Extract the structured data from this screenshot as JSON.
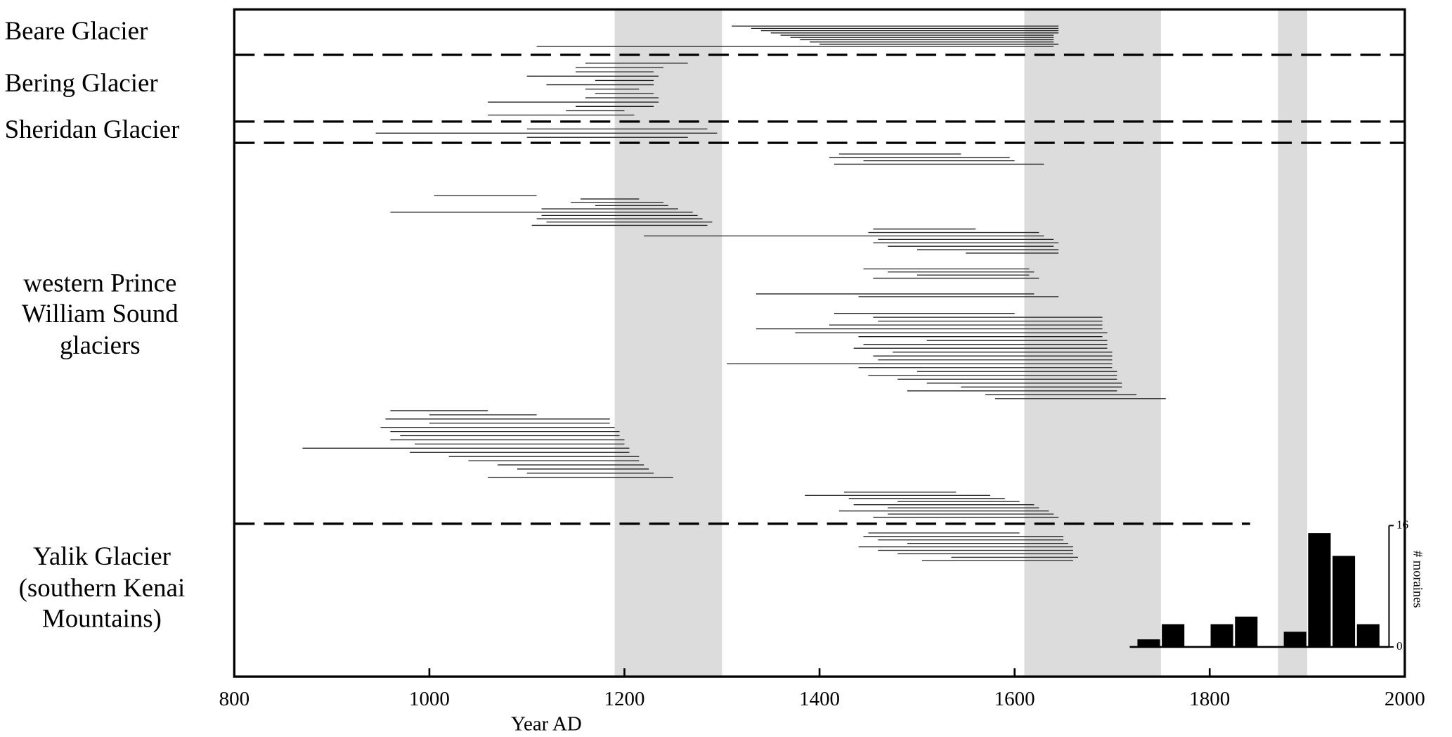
{
  "chart_data": [
    {
      "type": "range",
      "xlabel": "Year AD",
      "xlim": [
        800,
        2000
      ],
      "xticks": [
        800,
        1000,
        1200,
        1400,
        1600,
        1800,
        2000
      ],
      "shaded_periods": [
        [
          1190,
          1300
        ],
        [
          1610,
          1750
        ],
        [
          1870,
          1900
        ]
      ],
      "shade_color": "#dcdcdc",
      "color": "#222222",
      "groups": [
        {
          "name": [
            "Beare Glacier"
          ],
          "clusters": [
            [
              [
                1310,
                1645
              ],
              [
                1330,
                1645
              ],
              [
                1340,
                1645
              ],
              [
                1350,
                1645
              ],
              [
                1360,
                1640
              ],
              [
                1370,
                1640
              ],
              [
                1380,
                1640
              ],
              [
                1390,
                1640
              ],
              [
                1400,
                1645
              ],
              [
                1110,
                1640
              ]
            ]
          ]
        },
        {
          "name": [
            "Bering Glacier"
          ],
          "clusters": [
            [
              [
                1160,
                1265
              ],
              [
                1150,
                1240
              ],
              [
                1150,
                1230
              ],
              [
                1100,
                1235
              ],
              [
                1170,
                1230
              ],
              [
                1120,
                1230
              ],
              [
                1160,
                1215
              ],
              [
                1170,
                1230
              ],
              [
                1160,
                1235
              ],
              [
                1060,
                1235
              ],
              [
                1150,
                1230
              ],
              [
                1140,
                1200
              ],
              [
                1060,
                1210
              ]
            ]
          ]
        },
        {
          "name": [
            "Sheridan Glacier"
          ],
          "clusters": [
            [
              [
                1100,
                1285
              ],
              [
                945,
                1295
              ],
              [
                1100,
                1265
              ]
            ]
          ]
        },
        {
          "name": [
            "western Prince",
            "William Sound",
            "glaciers"
          ],
          "clusters": [
            [
              [
                1420,
                1545
              ],
              [
                1410,
                1595
              ],
              [
                1445,
                1600
              ],
              [
                1415,
                1630
              ]
            ],
            [
              [
                1005,
                1110
              ],
              [
                1155,
                1215
              ],
              [
                1145,
                1240
              ],
              [
                1170,
                1245
              ],
              [
                1115,
                1255
              ],
              [
                960,
                1270
              ],
              [
                1115,
                1275
              ],
              [
                1110,
                1280
              ],
              [
                1120,
                1290
              ],
              [
                1105,
                1285
              ]
            ],
            [
              [
                1455,
                1560
              ],
              [
                1450,
                1625
              ],
              [
                1220,
                1630
              ],
              [
                1460,
                1640
              ],
              [
                1455,
                1645
              ],
              [
                1470,
                1640
              ],
              [
                1500,
                1645
              ],
              [
                1550,
                1645
              ]
            ],
            [
              [
                1445,
                1615
              ],
              [
                1470,
                1620
              ],
              [
                1500,
                1615
              ],
              [
                1455,
                1625
              ]
            ],
            [
              [
                1335,
                1620
              ],
              [
                1440,
                1645
              ]
            ],
            [
              [
                1415,
                1600
              ],
              [
                1455,
                1690
              ],
              [
                1460,
                1690
              ],
              [
                1410,
                1690
              ],
              [
                1335,
                1690
              ],
              [
                1375,
                1695
              ],
              [
                1440,
                1690
              ],
              [
                1510,
                1695
              ],
              [
                1445,
                1695
              ],
              [
                1435,
                1695
              ],
              [
                1475,
                1700
              ],
              [
                1455,
                1700
              ],
              [
                1460,
                1700
              ],
              [
                1305,
                1700
              ],
              [
                1440,
                1700
              ],
              [
                1500,
                1705
              ],
              [
                1450,
                1705
              ],
              [
                1480,
                1705
              ],
              [
                1510,
                1710
              ],
              [
                1545,
                1710
              ],
              [
                1490,
                1705
              ],
              [
                1570,
                1725
              ],
              [
                1580,
                1755
              ]
            ],
            [
              [
                960,
                1060
              ],
              [
                1000,
                1110
              ],
              [
                955,
                1185
              ],
              [
                1000,
                1185
              ],
              [
                950,
                1190
              ],
              [
                960,
                1195
              ],
              [
                970,
                1195
              ],
              [
                960,
                1200
              ],
              [
                985,
                1200
              ],
              [
                870,
                1205
              ],
              [
                980,
                1205
              ],
              [
                1020,
                1215
              ],
              [
                1040,
                1215
              ],
              [
                1070,
                1220
              ],
              [
                1090,
                1225
              ],
              [
                1100,
                1230
              ],
              [
                1060,
                1250
              ]
            ],
            [
              [
                1425,
                1540
              ],
              [
                1385,
                1575
              ],
              [
                1430,
                1590
              ],
              [
                1480,
                1605
              ],
              [
                1435,
                1620
              ],
              [
                1470,
                1625
              ],
              [
                1420,
                1635
              ],
              [
                1470,
                1640
              ],
              [
                1455,
                1645
              ]
            ]
          ]
        },
        {
          "name": [
            "Yalik Glacier",
            "(southern Kenai",
            "Mountains)"
          ],
          "clusters": [
            [
              [
                1450,
                1605
              ],
              [
                1445,
                1650
              ],
              [
                1460,
                1650
              ],
              [
                1490,
                1655
              ],
              [
                1440,
                1660
              ],
              [
                1460,
                1660
              ],
              [
                1480,
                1660
              ],
              [
                1535,
                1665
              ],
              [
                1505,
                1660
              ]
            ]
          ]
        }
      ]
    },
    {
      "type": "histogram",
      "ylabel": "# moraines",
      "bins": [
        1725,
        1750,
        1775,
        1800,
        1825,
        1850,
        1875,
        1900,
        1925,
        1950,
        1975
      ],
      "values": [
        1,
        3,
        0,
        3,
        4,
        0,
        2,
        15,
        12,
        3
      ],
      "ylim": [
        0,
        16
      ],
      "yticks": [
        0,
        16
      ],
      "color": "#000000"
    }
  ]
}
